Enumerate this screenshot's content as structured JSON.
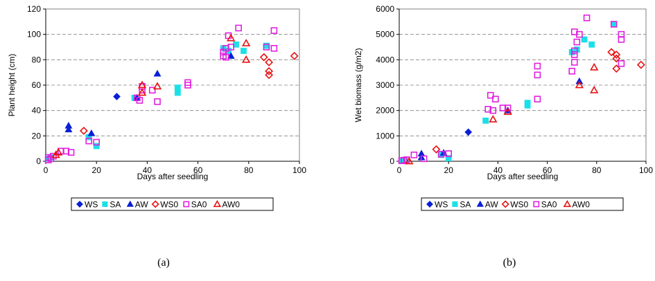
{
  "series_styles": {
    "WS": {
      "marker": "diamond",
      "filled": true,
      "color": "#0a1fd6"
    },
    "SA": {
      "marker": "square",
      "filled": true,
      "color": "#1ae0e8"
    },
    "AW": {
      "marker": "triangle",
      "filled": true,
      "color": "#0a1fd6"
    },
    "WS0": {
      "marker": "diamond",
      "filled": false,
      "color": "#e81010"
    },
    "SA0": {
      "marker": "square",
      "filled": false,
      "color": "#e020e0"
    },
    "AW0": {
      "marker": "triangle",
      "filled": false,
      "color": "#e81010"
    }
  },
  "chart_data": [
    {
      "type": "scatter",
      "caption": "(a)",
      "xlabel": "Days after seedling",
      "ylabel": "Plant height (cm)",
      "xlim": [
        0,
        100
      ],
      "ylim": [
        0,
        120
      ],
      "xticks": [
        0,
        20,
        40,
        60,
        80,
        100
      ],
      "yticks": [
        0,
        20,
        40,
        60,
        80,
        100,
        120
      ],
      "grid": "horizontal-dashed",
      "legend": "bottom",
      "series": [
        {
          "name": "WS",
          "points": [
            [
              28,
              51
            ]
          ]
        },
        {
          "name": "SA",
          "points": [
            [
              1,
              2
            ],
            [
              2,
              3
            ],
            [
              17,
              19
            ],
            [
              20,
              12
            ],
            [
              35,
              50
            ],
            [
              52,
              58
            ],
            [
              52,
              54
            ],
            [
              70,
              89
            ],
            [
              72,
              87
            ],
            [
              75,
              92
            ],
            [
              78,
              87
            ],
            [
              87,
              91
            ]
          ]
        },
        {
          "name": "AW",
          "points": [
            [
              9,
              28
            ],
            [
              9,
              25
            ],
            [
              18,
              22
            ],
            [
              36,
              50
            ],
            [
              44,
              69
            ],
            [
              73,
              83
            ]
          ]
        },
        {
          "name": "WS0",
          "points": [
            [
              15,
              24
            ],
            [
              86,
              82
            ],
            [
              88,
              78
            ],
            [
              88,
              71
            ],
            [
              88,
              68
            ],
            [
              98,
              83
            ]
          ]
        },
        {
          "name": "SA0",
          "points": [
            [
              1,
              1
            ],
            [
              1,
              3
            ],
            [
              2,
              2
            ],
            [
              3,
              4
            ],
            [
              6,
              8
            ],
            [
              8,
              8
            ],
            [
              10,
              7
            ],
            [
              17,
              16
            ],
            [
              20,
              15
            ],
            [
              36,
              50
            ],
            [
              37,
              48
            ],
            [
              38,
              56
            ],
            [
              38,
              59
            ],
            [
              42,
              56
            ],
            [
              44,
              47
            ],
            [
              56,
              62
            ],
            [
              56,
              60
            ],
            [
              70,
              86
            ],
            [
              70,
              83
            ],
            [
              71,
              82
            ],
            [
              71,
              89
            ],
            [
              72,
              99
            ],
            [
              73,
              90
            ],
            [
              76,
              105
            ],
            [
              87,
              90
            ],
            [
              90,
              89
            ],
            [
              90,
              103
            ]
          ]
        },
        {
          "name": "AW0",
          "points": [
            [
              4,
              5
            ],
            [
              5,
              7
            ],
            [
              38,
              60
            ],
            [
              38,
              54
            ],
            [
              44,
              59
            ],
            [
              73,
              97
            ],
            [
              79,
              80
            ],
            [
              79,
              93
            ]
          ]
        }
      ]
    },
    {
      "type": "scatter",
      "caption": "(b)",
      "xlabel": "Days after seedling",
      "ylabel": "Wet biomass (g/m2)",
      "xlim": [
        0,
        100
      ],
      "ylim": [
        0,
        6000
      ],
      "xticks": [
        0,
        20,
        40,
        60,
        80,
        100
      ],
      "yticks": [
        0,
        1000,
        2000,
        3000,
        4000,
        5000,
        6000
      ],
      "grid": "horizontal-dashed",
      "legend": "bottom",
      "series": [
        {
          "name": "WS",
          "points": [
            [
              28,
              1150
            ]
          ]
        },
        {
          "name": "SA",
          "points": [
            [
              1,
              20
            ],
            [
              2,
              50
            ],
            [
              17,
              250
            ],
            [
              20,
              120
            ],
            [
              35,
              1600
            ],
            [
              52,
              2200
            ],
            [
              52,
              2300
            ],
            [
              70,
              4300
            ],
            [
              72,
              4400
            ],
            [
              75,
              4800
            ],
            [
              78,
              4600
            ],
            [
              87,
              5400
            ]
          ]
        },
        {
          "name": "AW",
          "points": [
            [
              9,
              300
            ],
            [
              9,
              150
            ],
            [
              18,
              330
            ],
            [
              44,
              2000
            ],
            [
              73,
              3150
            ]
          ]
        },
        {
          "name": "WS0",
          "points": [
            [
              15,
              470
            ],
            [
              86,
              4300
            ],
            [
              88,
              4200
            ],
            [
              88,
              4050
            ],
            [
              88,
              3650
            ],
            [
              98,
              3800
            ]
          ]
        },
        {
          "name": "SA0",
          "points": [
            [
              1,
              20
            ],
            [
              2,
              40
            ],
            [
              3,
              60
            ],
            [
              6,
              250
            ],
            [
              10,
              100
            ],
            [
              17,
              280
            ],
            [
              20,
              300
            ],
            [
              36,
              2050
            ],
            [
              37,
              2600
            ],
            [
              38,
              2000
            ],
            [
              39,
              2450
            ],
            [
              42,
              2100
            ],
            [
              44,
              2100
            ],
            [
              56,
              3750
            ],
            [
              56,
              3400
            ],
            [
              56,
              2450
            ],
            [
              70,
              3550
            ],
            [
              71,
              4200
            ],
            [
              71,
              3900
            ],
            [
              71,
              4350
            ],
            [
              71,
              5100
            ],
            [
              72,
              4700
            ],
            [
              73,
              5000
            ],
            [
              76,
              5650
            ],
            [
              87,
              5400
            ],
            [
              90,
              3850
            ],
            [
              90,
              5000
            ],
            [
              90,
              4800
            ]
          ]
        },
        {
          "name": "AW0",
          "points": [
            [
              4,
              0
            ],
            [
              38,
              1650
            ],
            [
              44,
              1950
            ],
            [
              73,
              3000
            ],
            [
              79,
              3700
            ],
            [
              79,
              2800
            ]
          ]
        }
      ]
    }
  ]
}
